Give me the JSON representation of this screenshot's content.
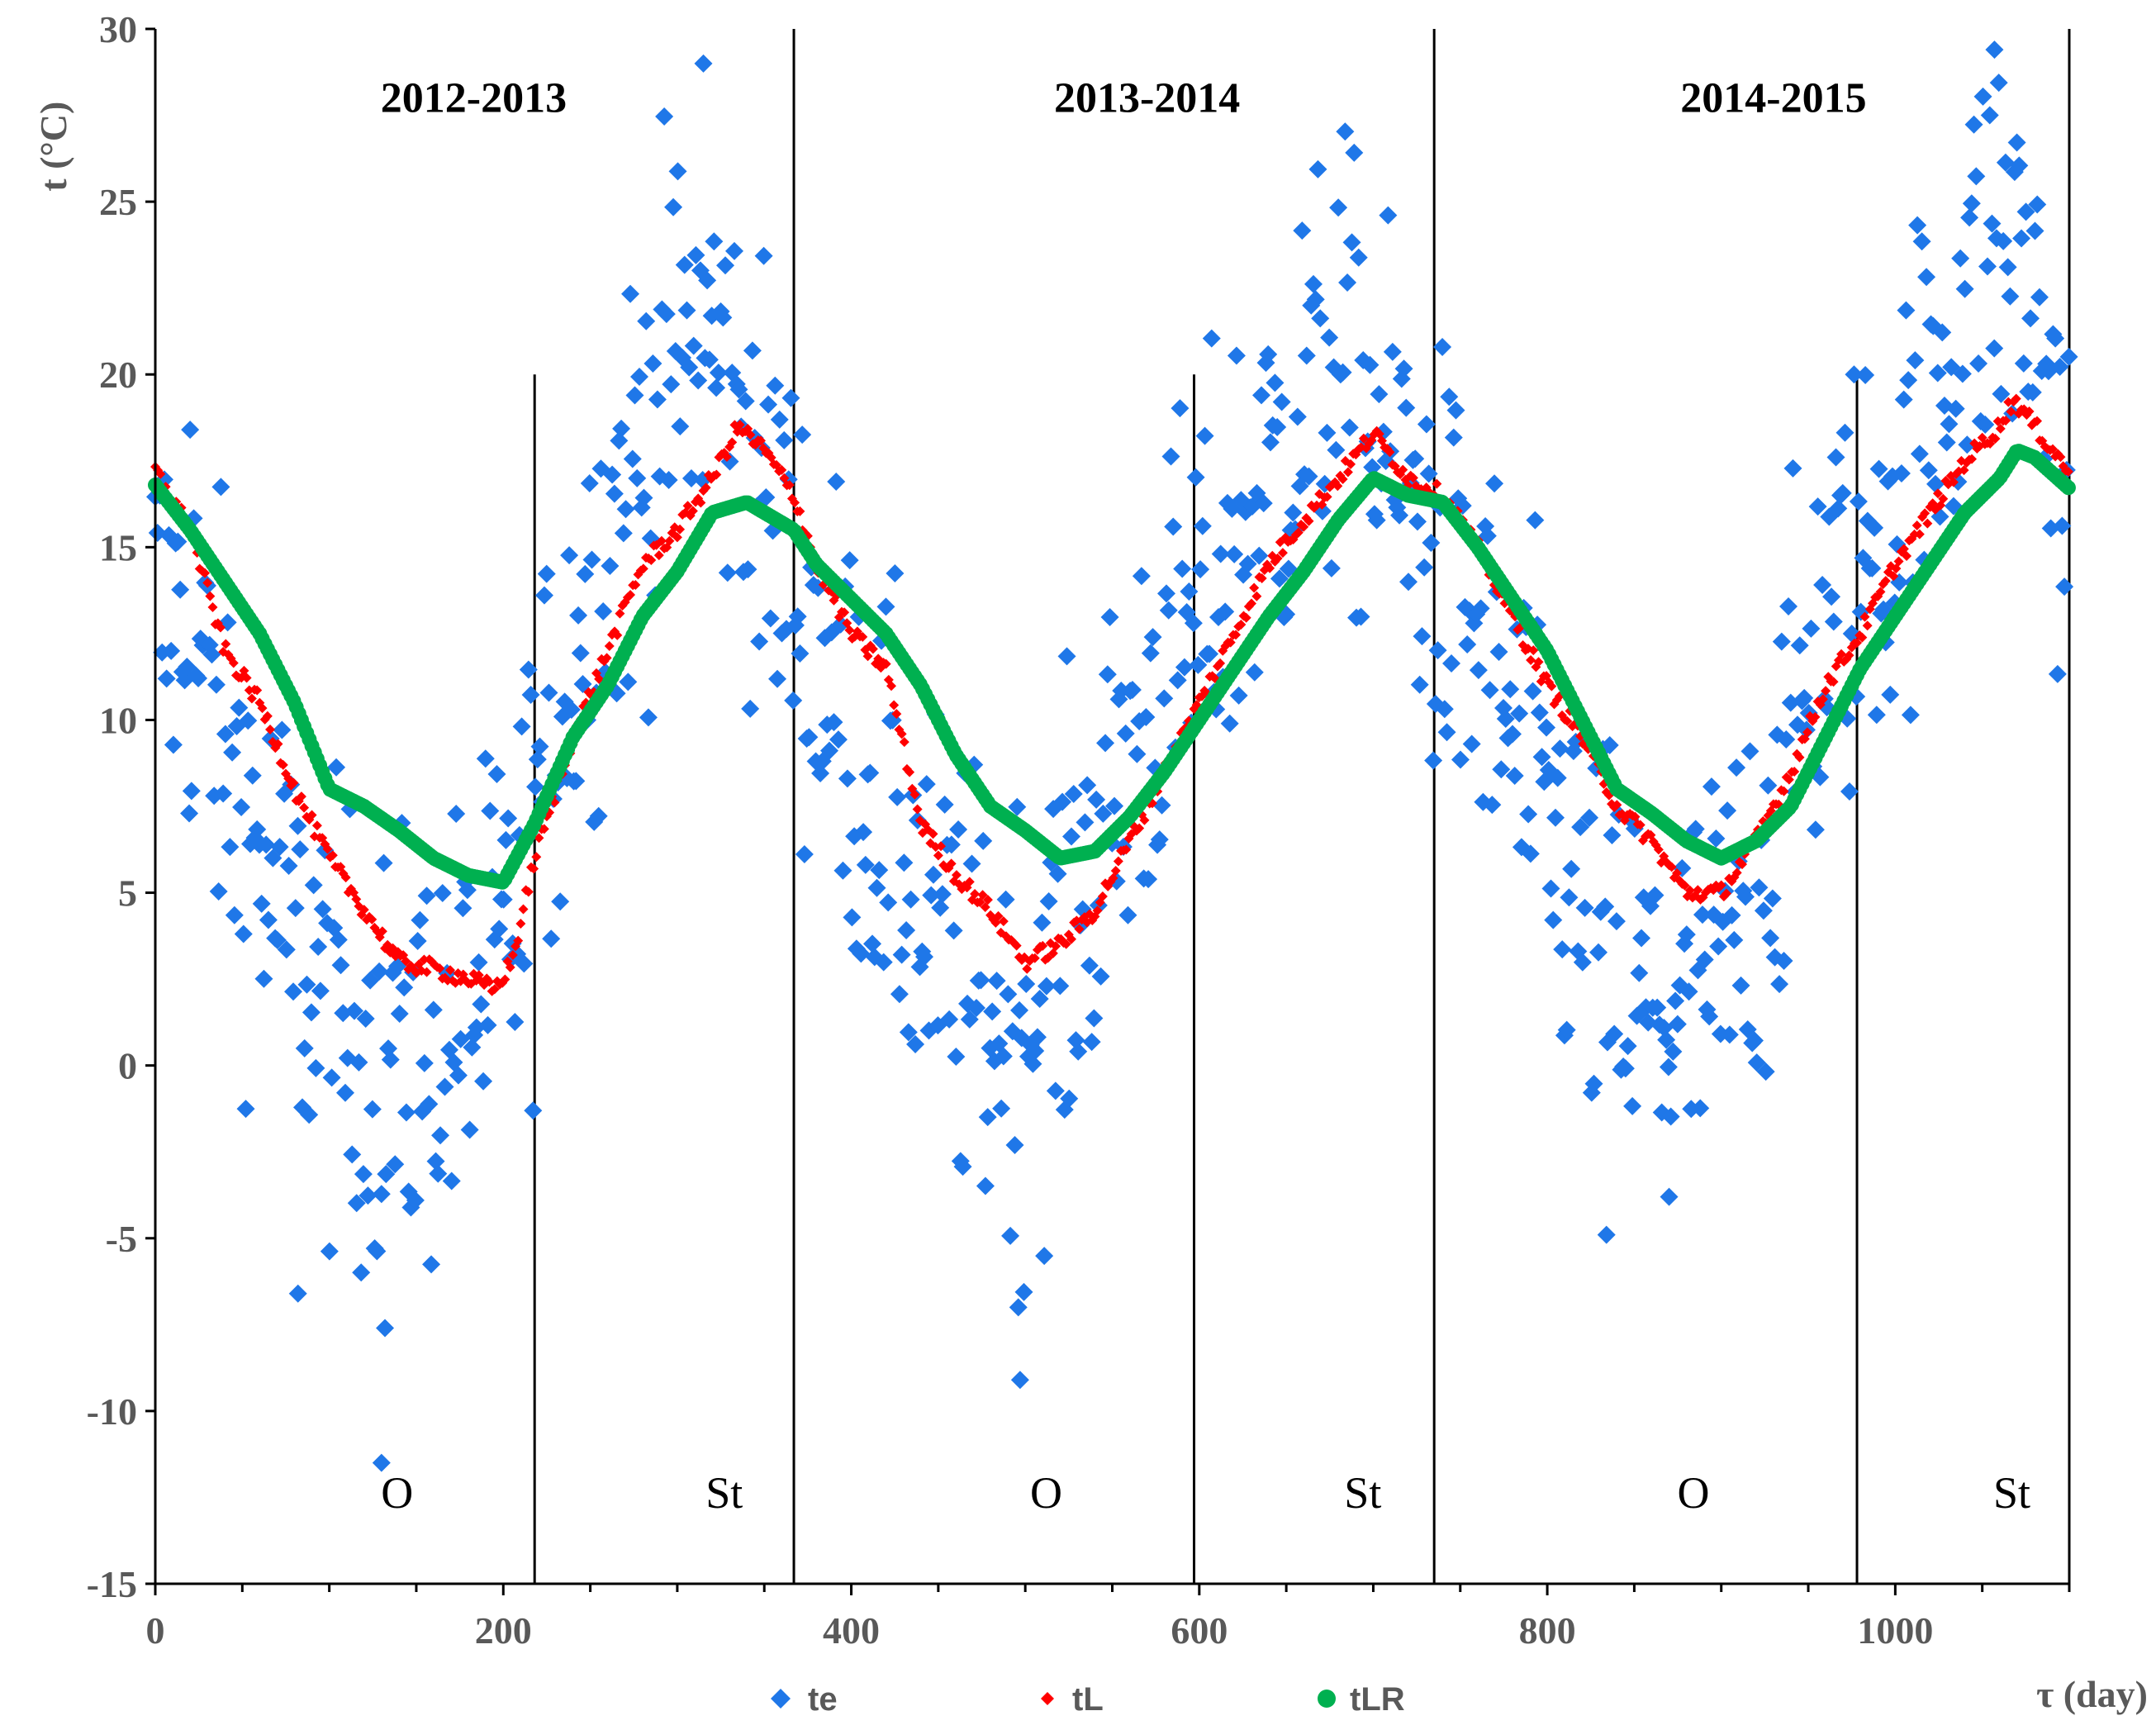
{
  "chart_data": {
    "type": "scatter",
    "title": "",
    "xlabel": "τ (day)",
    "ylabel": "t (°C)",
    "xlim": [
      0,
      1100
    ],
    "ylim": [
      -15,
      30
    ],
    "x_ticks": [
      0,
      200,
      400,
      600,
      800,
      1000
    ],
    "y_ticks": [
      -15,
      -10,
      -5,
      0,
      5,
      10,
      15,
      20,
      25,
      30
    ],
    "grid": false,
    "legend_position": "bottom",
    "season_dividers": [
      0,
      367,
      735,
      1100
    ],
    "phase_dividers": [
      218,
      597,
      978
    ],
    "season_labels": [
      {
        "text": "2012-2013",
        "x": 183
      },
      {
        "text": "2013-2014",
        "x": 570
      },
      {
        "text": "2014-2015",
        "x": 930
      }
    ],
    "phase_labels": [
      {
        "text": "O",
        "x": 139
      },
      {
        "text": "St",
        "x": 327
      },
      {
        "text": "O",
        "x": 512
      },
      {
        "text": "St",
        "x": 694
      },
      {
        "text": "O",
        "x": 884
      },
      {
        "text": "St",
        "x": 1067
      }
    ],
    "series": [
      {
        "name": "te",
        "color": "#1f77e8",
        "marker": "diamond",
        "anchors": [
          [
            0,
            13.2
          ],
          [
            20,
            12.5
          ],
          [
            40,
            9
          ],
          [
            60,
            6
          ],
          [
            80,
            3.5
          ],
          [
            100,
            1.5
          ],
          [
            120,
            0.5
          ],
          [
            140,
            0
          ],
          [
            160,
            0.5
          ],
          [
            180,
            1.5
          ],
          [
            200,
            3
          ],
          [
            218,
            7
          ],
          [
            240,
            12
          ],
          [
            260,
            15
          ],
          [
            280,
            18
          ],
          [
            300,
            20.5
          ],
          [
            320,
            21
          ],
          [
            340,
            18
          ],
          [
            360,
            15
          ],
          [
            380,
            12
          ],
          [
            400,
            9.5
          ],
          [
            420,
            7
          ],
          [
            440,
            4.5
          ],
          [
            460,
            2.5
          ],
          [
            480,
            1.5
          ],
          [
            500,
            1.5
          ],
          [
            520,
            3
          ],
          [
            540,
            6
          ],
          [
            560,
            9
          ],
          [
            580,
            11.5
          ],
          [
            600,
            13
          ],
          [
            620,
            15
          ],
          [
            640,
            17
          ],
          [
            660,
            19
          ],
          [
            680,
            20.5
          ],
          [
            700,
            18.5
          ],
          [
            720,
            16.5
          ],
          [
            740,
            14
          ],
          [
            760,
            12
          ],
          [
            780,
            9.5
          ],
          [
            800,
            7
          ],
          [
            820,
            4.5
          ],
          [
            840,
            2.5
          ],
          [
            860,
            1.5
          ],
          [
            880,
            1.5
          ],
          [
            900,
            2.5
          ],
          [
            920,
            5
          ],
          [
            940,
            9
          ],
          [
            960,
            13
          ],
          [
            980,
            14.5
          ],
          [
            1000,
            16.5
          ],
          [
            1020,
            19
          ],
          [
            1040,
            22
          ],
          [
            1060,
            24
          ],
          [
            1080,
            22
          ],
          [
            1100,
            16
          ]
        ],
        "outliers": [
          [
            130,
            -11.5
          ],
          [
            132,
            -7.6
          ],
          [
            82,
            -6.6
          ],
          [
            497,
            -9.1
          ],
          [
            496,
            -7
          ],
          [
            315,
            29
          ],
          [
            1057,
            29.4
          ],
          [
            20,
            18.4
          ],
          [
            834,
            -4.9
          ],
          [
            870,
            -3.8
          ]
        ]
      },
      {
        "name": "tL",
        "color": "#ff0000",
        "marker": "small-diamond",
        "anchors": [
          [
            0,
            17.2
          ],
          [
            20,
            15.5
          ],
          [
            40,
            12
          ],
          [
            60,
            10.5
          ],
          [
            80,
            8
          ],
          [
            100,
            6
          ],
          [
            120,
            4.5
          ],
          [
            140,
            3
          ],
          [
            160,
            2.8
          ],
          [
            180,
            2.5
          ],
          [
            195,
            2.2
          ],
          [
            205,
            3
          ],
          [
            218,
            6
          ],
          [
            240,
            9.5
          ],
          [
            260,
            12
          ],
          [
            280,
            14.5
          ],
          [
            300,
            15.5
          ],
          [
            320,
            17
          ],
          [
            335,
            18.5
          ],
          [
            350,
            17.8
          ],
          [
            367,
            16.5
          ],
          [
            380,
            14.5
          ],
          [
            400,
            12.5
          ],
          [
            420,
            11.5
          ],
          [
            440,
            7
          ],
          [
            460,
            5.5
          ],
          [
            480,
            4.5
          ],
          [
            500,
            3
          ],
          [
            520,
            3.5
          ],
          [
            540,
            4.5
          ],
          [
            560,
            6.5
          ],
          [
            580,
            8.5
          ],
          [
            600,
            10.5
          ],
          [
            620,
            12.5
          ],
          [
            640,
            14.5
          ],
          [
            660,
            15.8
          ],
          [
            680,
            17
          ],
          [
            700,
            18.3
          ],
          [
            720,
            17
          ],
          [
            740,
            16.5
          ],
          [
            760,
            15
          ],
          [
            780,
            13
          ],
          [
            800,
            11
          ],
          [
            820,
            9.5
          ],
          [
            840,
            7.5
          ],
          [
            860,
            6.5
          ],
          [
            880,
            5
          ],
          [
            900,
            5
          ],
          [
            920,
            6.5
          ],
          [
            940,
            8.5
          ],
          [
            960,
            11
          ],
          [
            980,
            12.5
          ],
          [
            1000,
            14.5
          ],
          [
            1020,
            16
          ],
          [
            1040,
            17.5
          ],
          [
            1060,
            18.5
          ],
          [
            1068,
            19.3
          ],
          [
            1080,
            18.5
          ],
          [
            1100,
            17.2
          ]
        ]
      },
      {
        "name": "tLR",
        "color": "#00b050",
        "marker": "circle",
        "anchors": [
          [
            0,
            16.8
          ],
          [
            20,
            15.5
          ],
          [
            40,
            14
          ],
          [
            60,
            12.5
          ],
          [
            80,
            10.5
          ],
          [
            100,
            8
          ],
          [
            120,
            7.5
          ],
          [
            140,
            6.8
          ],
          [
            160,
            6
          ],
          [
            180,
            5.5
          ],
          [
            200,
            5.3
          ],
          [
            218,
            7
          ],
          [
            240,
            9.5
          ],
          [
            260,
            11
          ],
          [
            280,
            13
          ],
          [
            300,
            14.3
          ],
          [
            320,
            16
          ],
          [
            340,
            16.3
          ],
          [
            367,
            15.5
          ],
          [
            380,
            14.5
          ],
          [
            400,
            13.5
          ],
          [
            420,
            12.5
          ],
          [
            440,
            11
          ],
          [
            460,
            9
          ],
          [
            480,
            7.5
          ],
          [
            500,
            6.8
          ],
          [
            520,
            6
          ],
          [
            540,
            6.2
          ],
          [
            560,
            7.2
          ],
          [
            580,
            8.5
          ],
          [
            600,
            10
          ],
          [
            620,
            11.5
          ],
          [
            640,
            13
          ],
          [
            660,
            14.3
          ],
          [
            680,
            15.8
          ],
          [
            700,
            17
          ],
          [
            720,
            16.5
          ],
          [
            740,
            16.3
          ],
          [
            760,
            15
          ],
          [
            780,
            13.5
          ],
          [
            800,
            12
          ],
          [
            820,
            10
          ],
          [
            840,
            8
          ],
          [
            860,
            7.3
          ],
          [
            880,
            6.5
          ],
          [
            900,
            6
          ],
          [
            920,
            6.5
          ],
          [
            940,
            7.5
          ],
          [
            960,
            9.5
          ],
          [
            980,
            11.5
          ],
          [
            1000,
            13
          ],
          [
            1020,
            14.5
          ],
          [
            1040,
            16
          ],
          [
            1060,
            17
          ],
          [
            1070,
            17.8
          ],
          [
            1080,
            17.6
          ],
          [
            1100,
            16.7
          ]
        ]
      }
    ]
  }
}
